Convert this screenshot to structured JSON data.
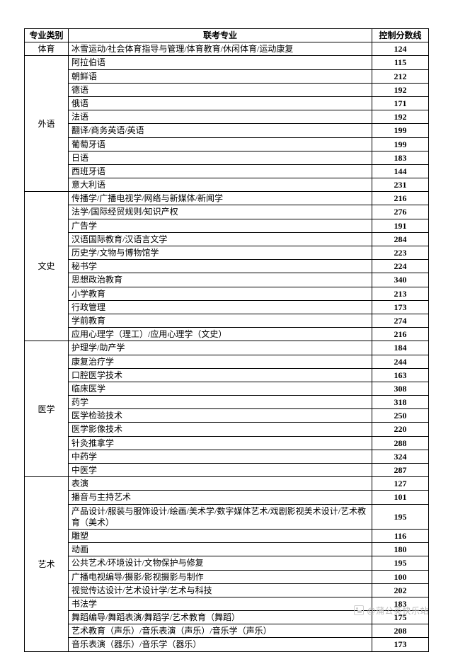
{
  "header": {
    "category": "专业类别",
    "major": "联考专业",
    "score": "控制分数线"
  },
  "groups": [
    {
      "category": "体育",
      "rows": [
        {
          "major": "冰雪运动/社会体育指导与管理/体育教育/休闲体育/运动康复",
          "score": "124"
        }
      ]
    },
    {
      "category": "外语",
      "rows": [
        {
          "major": "阿拉伯语",
          "score": "115"
        },
        {
          "major": "朝鲜语",
          "score": "212"
        },
        {
          "major": "德语",
          "score": "192"
        },
        {
          "major": "俄语",
          "score": "171"
        },
        {
          "major": "法语",
          "score": "192"
        },
        {
          "major": "翻译/商务英语/英语",
          "score": "199"
        },
        {
          "major": "葡萄牙语",
          "score": "199"
        },
        {
          "major": "日语",
          "score": "183"
        },
        {
          "major": "西班牙语",
          "score": "144"
        },
        {
          "major": "意大利语",
          "score": "231"
        }
      ]
    },
    {
      "category": "文史",
      "rows": [
        {
          "major": "传播学/广播电视学/网络与新媒体/新闻学",
          "score": "216"
        },
        {
          "major": "法学/国际经贸规则/知识产权",
          "score": "276"
        },
        {
          "major": "广告学",
          "score": "191"
        },
        {
          "major": "汉语国际教育/汉语言文学",
          "score": "284"
        },
        {
          "major": "历史学/文物与博物馆学",
          "score": "223"
        },
        {
          "major": "秘书学",
          "score": "224"
        },
        {
          "major": "思想政治教育",
          "score": "340"
        },
        {
          "major": "小学教育",
          "score": "213"
        },
        {
          "major": "行政管理",
          "score": "173"
        },
        {
          "major": "学前教育",
          "score": "274"
        },
        {
          "major": "应用心理学（理工）/应用心理学（文史）",
          "score": "216"
        }
      ]
    },
    {
      "category": "医学",
      "rows": [
        {
          "major": "护理学/助产学",
          "score": "184"
        },
        {
          "major": "康复治疗学",
          "score": "244"
        },
        {
          "major": "口腔医学技术",
          "score": "163"
        },
        {
          "major": "临床医学",
          "score": "308"
        },
        {
          "major": "药学",
          "score": "318"
        },
        {
          "major": "医学检验技术",
          "score": "250"
        },
        {
          "major": "医学影像技术",
          "score": "220"
        },
        {
          "major": "针灸推拿学",
          "score": "288"
        },
        {
          "major": "中药学",
          "score": "324"
        },
        {
          "major": "中医学",
          "score": "287"
        }
      ]
    },
    {
      "category": "艺术",
      "rows": [
        {
          "major": "表演",
          "score": "127"
        },
        {
          "major": "播音与主持艺术",
          "score": "101"
        },
        {
          "major": "产品设计/服装与服饰设计/绘画/美术学/数字媒体艺术/戏剧影视美术设计/艺术教育（美术）",
          "score": "195"
        },
        {
          "major": "雕塑",
          "score": "116"
        },
        {
          "major": "动画",
          "score": "180"
        },
        {
          "major": "公共艺术/环境设计/文物保护与修复",
          "score": "195"
        },
        {
          "major": "广播电视编导/摄影/影视摄影与制作",
          "score": "100"
        },
        {
          "major": "视觉传达设计/艺术设计学/艺术与科技",
          "score": "202"
        },
        {
          "major": "书法学",
          "score": "183"
        },
        {
          "major": "舞蹈编导/舞蹈表演/舞蹈学/艺术教育（舞蹈）",
          "score": "175"
        },
        {
          "major": "艺术教育（声乐）/音乐表演（声乐）/音乐学（声乐）",
          "score": "208"
        },
        {
          "major": "音乐表演（器乐）/音乐学（器乐）",
          "score": "173"
        }
      ]
    }
  ],
  "watermark": "@蒲公英快乐站"
}
